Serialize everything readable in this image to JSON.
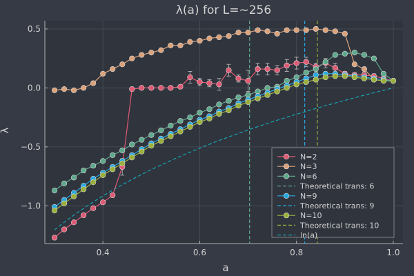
{
  "chart_data": {
    "type": "line",
    "title": "λ(a) for L=~256",
    "xlabel": "a",
    "ylabel": "λ",
    "xlim": [
      0.28,
      1.02
    ],
    "ylim": [
      -1.32,
      0.57
    ],
    "xticks": [
      0.4,
      0.6,
      0.8,
      1.0
    ],
    "xtick_labels": [
      "0.4",
      "0.6",
      "0.8",
      "1.0"
    ],
    "yticks": [
      -1.0,
      -0.5,
      0.0,
      0.5
    ],
    "ytick_labels": [
      "−1.0",
      "−0.5",
      "0.0",
      "0.5"
    ],
    "grid": true,
    "legend_position": "bottom-right",
    "x": [
      0.3,
      0.32,
      0.34,
      0.36,
      0.38,
      0.4,
      0.42,
      0.44,
      0.46,
      0.48,
      0.5,
      0.52,
      0.54,
      0.56,
      0.58,
      0.6,
      0.62,
      0.64,
      0.66,
      0.68,
      0.7,
      0.72,
      0.74,
      0.76,
      0.78,
      0.8,
      0.82,
      0.84,
      0.86,
      0.88,
      0.9,
      0.92,
      0.94,
      0.96,
      0.98,
      1.0
    ],
    "series": [
      {
        "name": "N=2",
        "color": "#e05a74",
        "marker": true,
        "values": [
          -1.27,
          -1.2,
          -1.14,
          -1.08,
          -1.02,
          -0.97,
          -0.91,
          -0.67,
          -0.01,
          0.0,
          0.0,
          0.0,
          0.0,
          0.01,
          0.09,
          0.05,
          0.04,
          0.03,
          0.15,
          0.08,
          0.06,
          0.16,
          0.16,
          0.15,
          0.19,
          0.21,
          0.22,
          0.18,
          0.21,
          0.17,
          0.12,
          0.11,
          0.11,
          0.1,
          0.08,
          0.06
        ],
        "errors": [
          0,
          0,
          0,
          0,
          0,
          0,
          0,
          0.07,
          0.01,
          0,
          0,
          0,
          0,
          0,
          0.05,
          0.03,
          0.03,
          0.05,
          0.05,
          0.03,
          0.09,
          0.05,
          0.05,
          0.04,
          0.05,
          0.05,
          0.04,
          0.03,
          0.04,
          0.04,
          0.02,
          0.02,
          0.02,
          0.02,
          0.02,
          0.01
        ]
      },
      {
        "name": "N=3",
        "color": "#dca27a",
        "marker": true,
        "values": [
          -0.02,
          -0.01,
          -0.02,
          0.0,
          0.04,
          0.12,
          0.16,
          0.2,
          0.25,
          0.28,
          0.3,
          0.32,
          0.36,
          0.36,
          0.39,
          0.4,
          0.42,
          0.43,
          0.44,
          0.47,
          0.47,
          0.49,
          0.48,
          0.46,
          0.49,
          0.49,
          0.49,
          0.5,
          0.49,
          0.48,
          0.46,
          0.2,
          0.16,
          0.07,
          0.06,
          0.06
        ]
      },
      {
        "name": "N=6",
        "color": "#5fa98d",
        "marker": true,
        "values": [
          -0.87,
          -0.81,
          -0.76,
          -0.7,
          -0.66,
          -0.62,
          -0.57,
          -0.53,
          -0.48,
          -0.44,
          -0.4,
          -0.36,
          -0.32,
          -0.28,
          -0.25,
          -0.21,
          -0.18,
          -0.14,
          -0.11,
          -0.08,
          -0.06,
          -0.03,
          0.0,
          0.01,
          0.06,
          0.09,
          0.13,
          0.16,
          0.22,
          0.28,
          0.29,
          0.3,
          0.28,
          0.25,
          0.12,
          0.06
        ]
      },
      {
        "name": "Theoretical trans: 6",
        "color": "#5fa98d",
        "dashed": true,
        "vertical": 0.703
      },
      {
        "name": "N=9",
        "color": "#27a9e0",
        "marker": true,
        "values": [
          -1.01,
          -0.95,
          -0.89,
          -0.83,
          -0.77,
          -0.72,
          -0.67,
          -0.62,
          -0.57,
          -0.52,
          -0.47,
          -0.43,
          -0.39,
          -0.35,
          -0.31,
          -0.27,
          -0.24,
          -0.2,
          -0.17,
          -0.13,
          -0.1,
          -0.07,
          -0.04,
          -0.01,
          0.02,
          0.05,
          0.08,
          0.11,
          0.12,
          0.12,
          0.11,
          0.1,
          0.09,
          0.08,
          0.07,
          0.06
        ]
      },
      {
        "name": "Theoretical trans: 9",
        "color": "#27a9e0",
        "dashed": true,
        "vertical": 0.817
      },
      {
        "name": "N=10",
        "color": "#9bb03a",
        "marker": true,
        "values": [
          -1.04,
          -0.98,
          -0.92,
          -0.86,
          -0.8,
          -0.74,
          -0.69,
          -0.64,
          -0.59,
          -0.54,
          -0.49,
          -0.45,
          -0.41,
          -0.37,
          -0.33,
          -0.29,
          -0.26,
          -0.22,
          -0.19,
          -0.15,
          -0.12,
          -0.09,
          -0.06,
          -0.03,
          0.0,
          0.03,
          0.05,
          0.07,
          0.09,
          0.1,
          0.1,
          0.09,
          0.08,
          0.07,
          0.06,
          0.06
        ]
      },
      {
        "name": "Theoretical trans: 10",
        "color": "#9bb03a",
        "dashed": true,
        "vertical": 0.843
      },
      {
        "name": "ln(a)",
        "color": "#17a5b5",
        "dashed": true,
        "function": "ln"
      }
    ]
  }
}
